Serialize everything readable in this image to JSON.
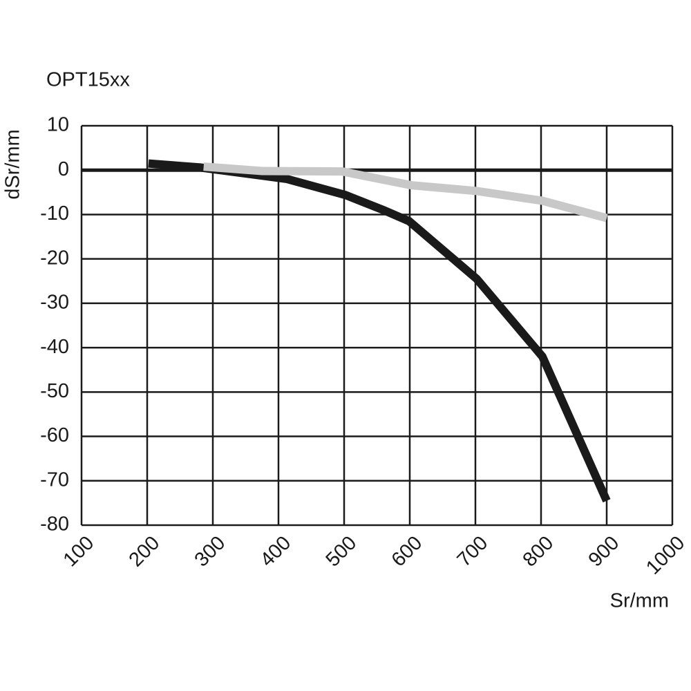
{
  "chart_data": {
    "type": "line",
    "title": "OPT15xx",
    "x_label": "Sr/mm",
    "y_label": "dSr/mm",
    "series": [
      {
        "color": "#1a1a1a",
        "x": [
          202,
          281,
          413,
          502,
          560,
          599,
          702,
          802,
          900
        ],
        "values": [
          1.5,
          0.6,
          -2,
          -5.6,
          -9,
          -11.5,
          -24.5,
          -42,
          -74.5
        ]
      },
      {
        "color": "#c8c8c8",
        "x": [
          286,
          375,
          497,
          602,
          702,
          802,
          900
        ],
        "values": [
          0.8,
          -0.2,
          -0.3,
          -3.4,
          -4.7,
          -6.9,
          -10.8
        ]
      }
    ],
    "xlim": [
      100,
      1000
    ],
    "xticks": [
      100,
      200,
      300,
      400,
      500,
      600,
      700,
      800,
      900,
      1000
    ],
    "ylim": [
      -80,
      10
    ],
    "yticks": [
      10,
      0,
      -10,
      -20,
      -30,
      -40,
      -50,
      -60,
      -70,
      -80
    ],
    "grid": true
  }
}
